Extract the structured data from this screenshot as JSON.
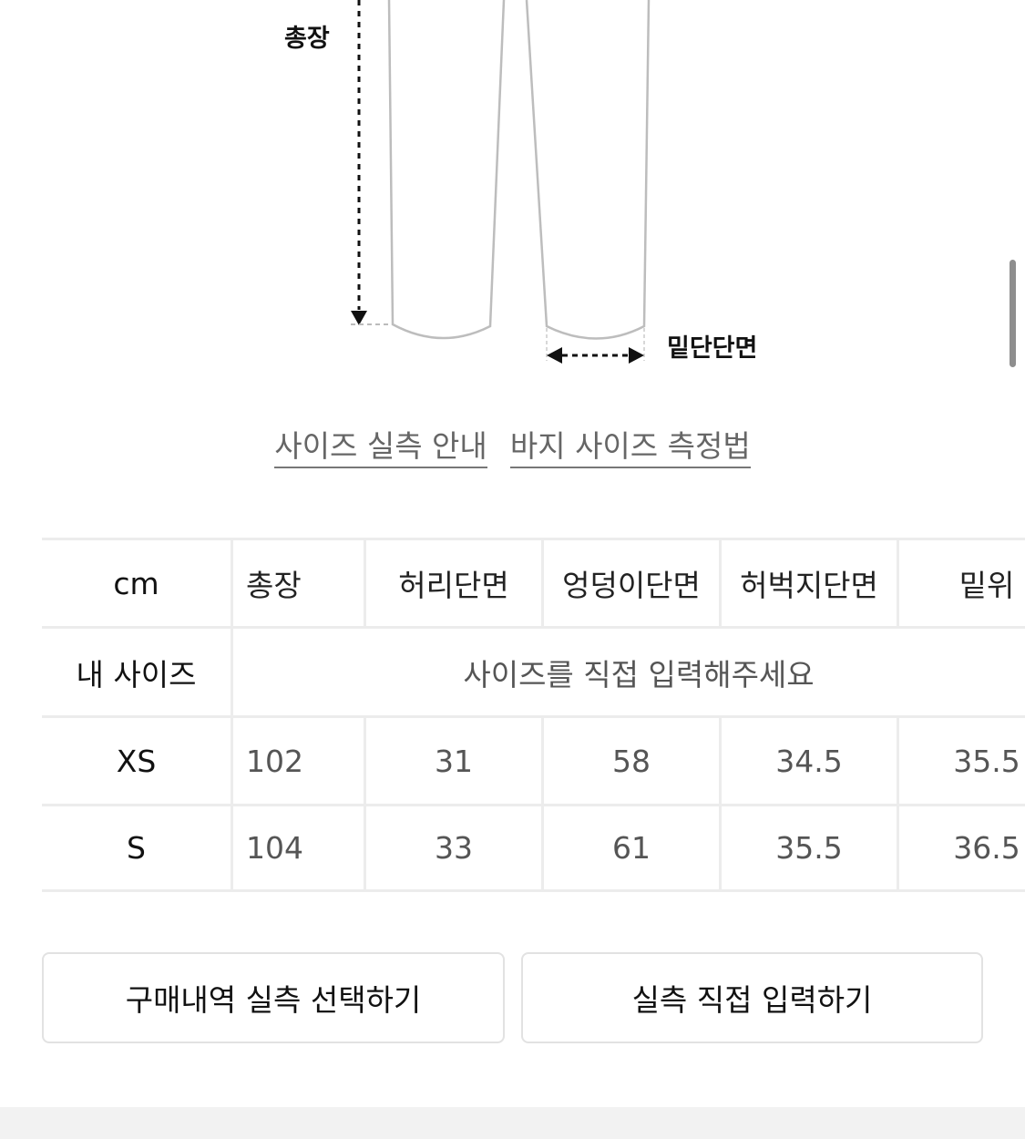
{
  "diagram": {
    "total_length_label": "총장",
    "hem_label": "밑단단면"
  },
  "links": [
    {
      "label": "사이즈 실측 안내"
    },
    {
      "label": "바지 사이즈 측정법"
    }
  ],
  "size_table": {
    "unit": "cm",
    "columns": [
      "총장",
      "허리단면",
      "엉덩이단면",
      "허벅지단면",
      "밑위"
    ],
    "my_size_label": "내 사이즈",
    "my_size_placeholder": "사이즈를 직접 입력해주세요",
    "rows": [
      {
        "size": "XS",
        "values": [
          "102",
          "31",
          "58",
          "34.5",
          "35.5"
        ]
      },
      {
        "size": "S",
        "values": [
          "104",
          "33",
          "61",
          "35.5",
          "36.5"
        ]
      }
    ]
  },
  "buttons": {
    "select_purchase": "구매내역 실측 선택하기",
    "manual_input": "실측 직접 입력하기"
  }
}
